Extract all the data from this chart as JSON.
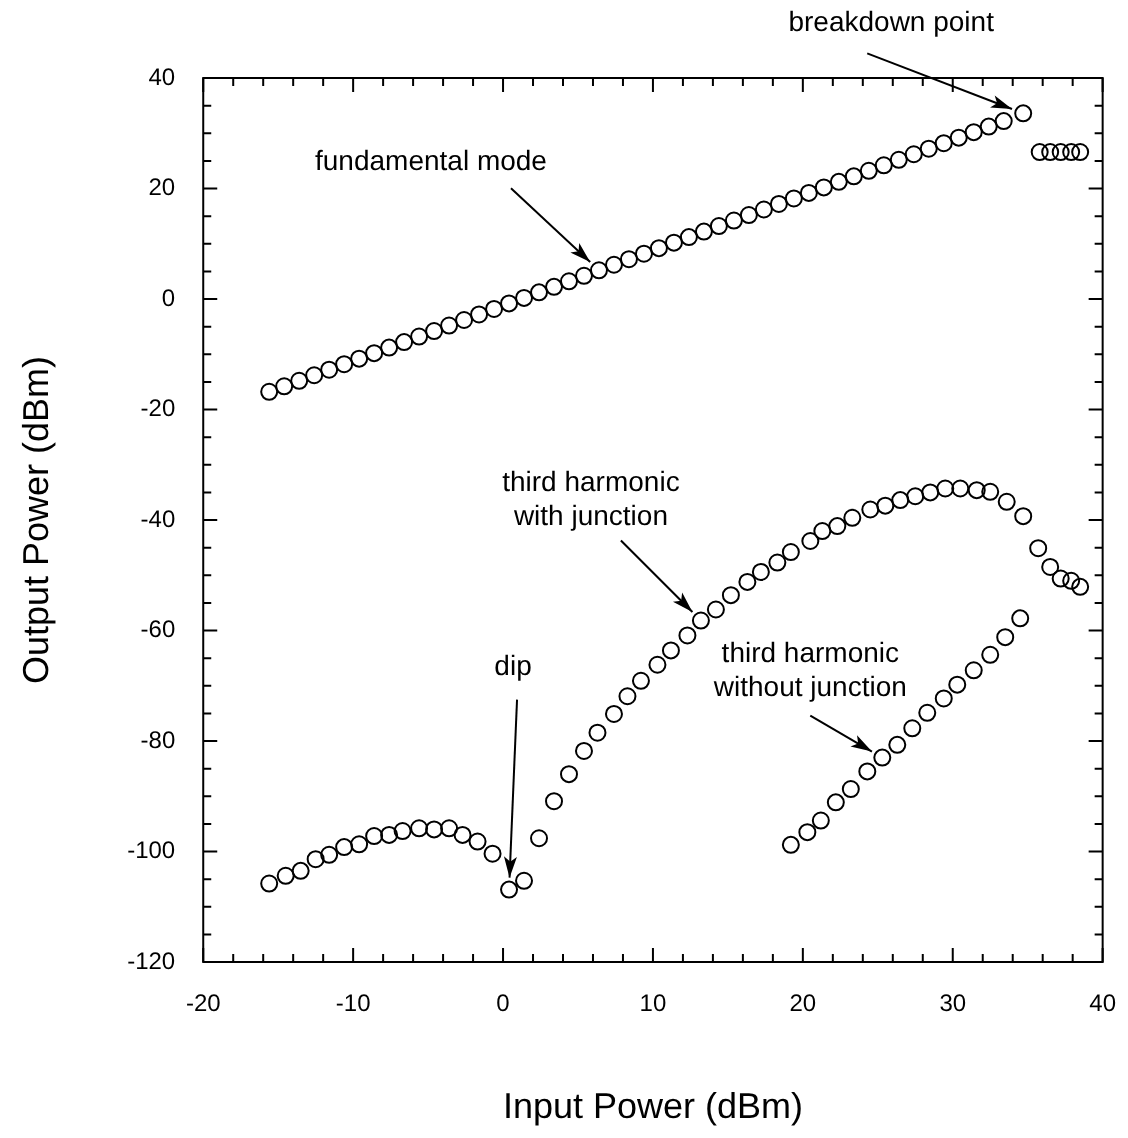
{
  "chart_data": {
    "type": "scatter",
    "xlabel": "Input Power (dBm)",
    "ylabel": "Output Power (dBm)",
    "marker": "circle",
    "grid": false,
    "legend": false,
    "xlim": [
      -20,
      40
    ],
    "ylim": [
      -120,
      40
    ],
    "xticks": [
      -20,
      {
        "value": -18,
        "label": null
      },
      {
        "value": -16,
        "label": null
      },
      {
        "value": -14,
        "label": null
      },
      {
        "value": -12,
        "label": null
      },
      -10,
      {
        "value": -8,
        "label": null
      },
      {
        "value": -6,
        "label": null
      },
      {
        "value": -4,
        "label": null
      },
      {
        "value": -2,
        "label": null
      },
      0,
      {
        "value": 2,
        "label": null
      },
      {
        "value": 4,
        "label": null
      },
      {
        "value": 6,
        "label": null
      },
      {
        "value": 8,
        "label": null
      },
      10,
      {
        "value": 12,
        "label": null
      },
      {
        "value": 14,
        "label": null
      },
      {
        "value": 16,
        "label": null
      },
      {
        "value": 18,
        "label": null
      },
      20,
      {
        "value": 22,
        "label": null
      },
      {
        "value": 24,
        "label": null
      },
      {
        "value": 26,
        "label": null
      },
      {
        "value": 28,
        "label": null
      },
      30,
      {
        "value": 32,
        "label": null
      },
      {
        "value": 34,
        "label": null
      },
      {
        "value": 36,
        "label": null
      },
      {
        "value": 38,
        "label": null
      },
      40
    ],
    "yticks": [
      -120,
      {
        "value": -115,
        "label": null
      },
      {
        "value": -110,
        "label": null
      },
      {
        "value": -105,
        "label": null
      },
      -100,
      {
        "value": -95,
        "label": null
      },
      {
        "value": -90,
        "label": null
      },
      {
        "value": -85,
        "label": null
      },
      -80,
      {
        "value": -75,
        "label": null
      },
      {
        "value": -70,
        "label": null
      },
      {
        "value": -65,
        "label": null
      },
      -60,
      {
        "value": -55,
        "label": null
      },
      {
        "value": -50,
        "label": null
      },
      {
        "value": -45,
        "label": null
      },
      -40,
      {
        "value": -35,
        "label": null
      },
      {
        "value": -30,
        "label": null
      },
      {
        "value": -25,
        "label": null
      },
      -20,
      {
        "value": -15,
        "label": null
      },
      {
        "value": -10,
        "label": null
      },
      {
        "value": -5,
        "label": null
      },
      0,
      {
        "value": 5,
        "label": null
      },
      {
        "value": 10,
        "label": null
      },
      {
        "value": 15,
        "label": null
      },
      20,
      {
        "value": 25,
        "label": null
      },
      {
        "value": 30,
        "label": null
      },
      {
        "value": 35,
        "label": null
      },
      40
    ],
    "series": [
      {
        "color": "#000000",
        "x": [
          -15.6,
          -14.6,
          -13.6,
          -12.6,
          -11.6,
          -10.6,
          -9.6,
          -8.6,
          -7.6,
          -6.6,
          -5.6,
          -4.6,
          -3.6,
          -2.6,
          -1.6,
          -0.6,
          0.4,
          1.4,
          2.4,
          3.4,
          4.4,
          5.4,
          6.4,
          7.4,
          8.4,
          9.4,
          10.4,
          11.4,
          12.4,
          13.4,
          14.4,
          15.4,
          16.4,
          17.4,
          18.4,
          19.4,
          20.4,
          21.4,
          22.4,
          23.4,
          24.4,
          25.4,
          26.4,
          27.4,
          28.4,
          29.4,
          30.4,
          31.4,
          32.4,
          33.4,
          34.7,
          35.8,
          36.5,
          37.2,
          37.9,
          38.5
        ],
        "values": [
          -16.8,
          -15.8,
          -14.8,
          -13.8,
          -12.8,
          -11.8,
          -10.8,
          -9.8,
          -8.8,
          -7.8,
          -6.8,
          -5.8,
          -4.8,
          -3.8,
          -2.8,
          -1.8,
          -0.8,
          0.2,
          1.2,
          2.2,
          3.2,
          4.2,
          5.2,
          6.2,
          7.2,
          8.2,
          9.2,
          10.2,
          11.2,
          12.2,
          13.2,
          14.2,
          15.2,
          16.2,
          17.2,
          18.2,
          19.2,
          20.2,
          21.2,
          22.2,
          23.2,
          24.2,
          25.2,
          26.2,
          27.2,
          28.2,
          29.2,
          30.2,
          31.2,
          32.2,
          33.6,
          26.6,
          26.6,
          26.6,
          26.6,
          26.6
        ]
      },
      {
        "color": "#000000",
        "x": [
          -15.6,
          -14.5,
          -13.5,
          -12.5,
          -11.6,
          -10.6,
          -9.6,
          -8.6,
          -7.6,
          -6.7,
          -5.6,
          -4.6,
          -3.6,
          -2.7,
          -1.7,
          -0.7,
          0.4,
          1.4,
          2.4,
          3.4,
          4.4,
          5.4,
          6.3,
          7.4,
          8.3,
          9.2,
          10.3,
          11.2,
          12.3,
          13.2,
          14.2,
          15.2,
          16.3,
          17.2,
          18.3,
          19.2,
          20.5,
          21.3,
          22.3,
          23.3,
          24.5,
          25.5,
          26.5,
          27.5,
          28.5,
          29.5,
          30.5,
          31.6,
          32.5,
          33.6,
          34.7,
          35.7,
          36.5,
          37.2,
          37.9,
          38.5
        ],
        "values": [
          -105.8,
          -104.4,
          -103.5,
          -101.4,
          -100.6,
          -99.2,
          -98.7,
          -97.2,
          -97.0,
          -96.3,
          -95.8,
          -96.0,
          -95.8,
          -97.0,
          -98.2,
          -100.4,
          -106.9,
          -105.3,
          -97.6,
          -90.9,
          -86.0,
          -81.8,
          -78.5,
          -75.1,
          -71.9,
          -69.1,
          -66.2,
          -63.6,
          -60.9,
          -58.2,
          -56.2,
          -53.6,
          -51.2,
          -49.4,
          -47.7,
          -45.8,
          -43.8,
          -42.0,
          -41.1,
          -39.6,
          -38.1,
          -37.4,
          -36.4,
          -35.7,
          -35.0,
          -34.3,
          -34.3,
          -34.6,
          -34.9,
          -36.7,
          -39.3,
          -45.1,
          -48.5,
          -50.6,
          -51.0,
          -52.1
        ]
      },
      {
        "color": "#000000",
        "x": [
          19.2,
          20.3,
          21.2,
          22.2,
          23.2,
          24.3,
          25.3,
          26.3,
          27.3,
          28.3,
          29.4,
          30.3,
          31.4,
          32.5,
          33.5,
          34.5
        ],
        "values": [
          -98.8,
          -96.5,
          -94.4,
          -91.1,
          -88.7,
          -85.5,
          -83.0,
          -80.7,
          -77.7,
          -74.9,
          -72.3,
          -69.8,
          -67.2,
          -64.4,
          -61.2,
          -57.8
        ]
      }
    ],
    "annotations": [
      {
        "text": "breakdown point",
        "x": 34.7,
        "y": 33.6
      },
      {
        "text": "fundamental mode",
        "x": 6.4,
        "y": 5.2
      },
      {
        "text": "third harmonic\nwith junction",
        "x": 13.2,
        "y": -58.2
      },
      {
        "text": "dip",
        "x": 0.4,
        "y": -106.9
      },
      {
        "text": "third harmonic\nwithout junction",
        "x": 25.3,
        "y": -83.0
      }
    ]
  }
}
